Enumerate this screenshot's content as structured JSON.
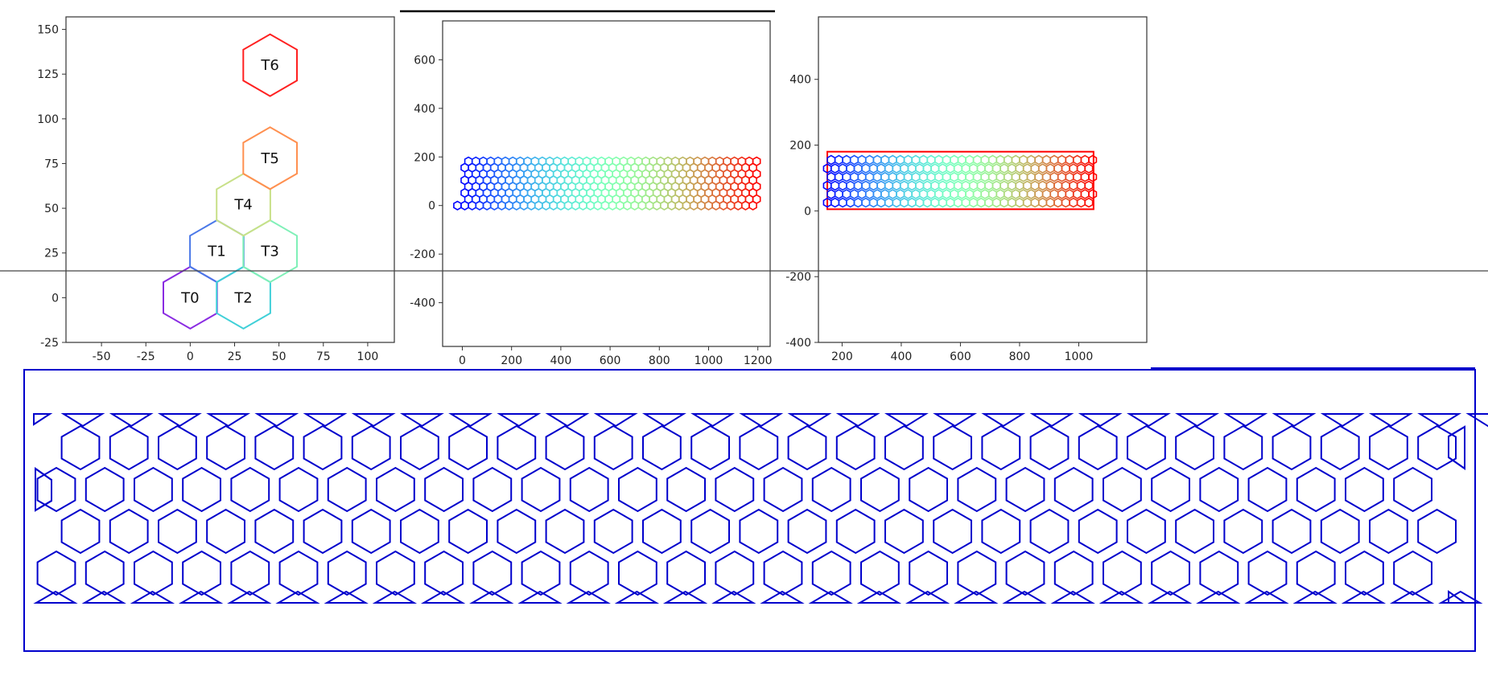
{
  "chart_data": [
    {
      "type": "scatter",
      "title": "",
      "xlabel": "",
      "ylabel": "",
      "xlim": [
        -70,
        115
      ],
      "ylim": [
        -25,
        157
      ],
      "xticks": [
        -50,
        -25,
        0,
        25,
        50,
        75,
        100
      ],
      "yticks": [
        -25,
        0,
        25,
        50,
        75,
        100,
        125,
        150
      ],
      "grid": false,
      "series": [
        {
          "label": "T0",
          "x": 0,
          "y": 0,
          "color": "#8a2be2"
        },
        {
          "label": "T1",
          "x": 15,
          "y": 26,
          "color": "#4a78e8"
        },
        {
          "label": "T2",
          "x": 30,
          "y": 0,
          "color": "#40d0d8"
        },
        {
          "label": "T3",
          "x": 45,
          "y": 26,
          "color": "#80f0b8"
        },
        {
          "label": "T4",
          "x": 30,
          "y": 52,
          "color": "#c8e088"
        },
        {
          "label": "T5",
          "x": 45,
          "y": 78,
          "color": "#ff9050"
        },
        {
          "label": "T6",
          "x": 45,
          "y": 130,
          "color": "#ff2020"
        }
      ]
    },
    {
      "type": "scatter",
      "title": "",
      "xlabel": "",
      "ylabel": "",
      "xlim": [
        -80,
        1250
      ],
      "ylim": [
        -580,
        760
      ],
      "xticks": [
        0,
        200,
        400,
        600,
        800,
        1000,
        1200
      ],
      "yticks": [
        -400,
        -200,
        0,
        200,
        400,
        600
      ],
      "grid": false,
      "colormap": "rainbow",
      "hex_lattice": {
        "x_start": 0,
        "x_end": 1200,
        "x_step": 30,
        "y_start": 0,
        "y_end": 182,
        "y_step": 26
      }
    },
    {
      "type": "scatter",
      "title": "",
      "xlabel": "",
      "ylabel": "",
      "xlim": [
        120,
        1230
      ],
      "ylim": [
        -400,
        590
      ],
      "xticks": [
        200,
        400,
        600,
        800,
        1000
      ],
      "yticks": [
        -400,
        -200,
        0,
        200,
        400
      ],
      "grid": false,
      "colormap": "rainbow",
      "bounding_rect": {
        "x": [
          150,
          1050
        ],
        "y": [
          5,
          180
        ],
        "color": "#ff0000"
      },
      "hex_lattice": {
        "x_start": 150,
        "x_end": 1050,
        "x_step": 26,
        "y_start": 25,
        "y_end": 165,
        "y_step": 26
      }
    },
    {
      "type": "diagram",
      "title": "",
      "stroke_color": "#0000cc",
      "pattern": "hexagonal honeycomb cut-out panel",
      "columns": 30,
      "rows": 4
    }
  ]
}
